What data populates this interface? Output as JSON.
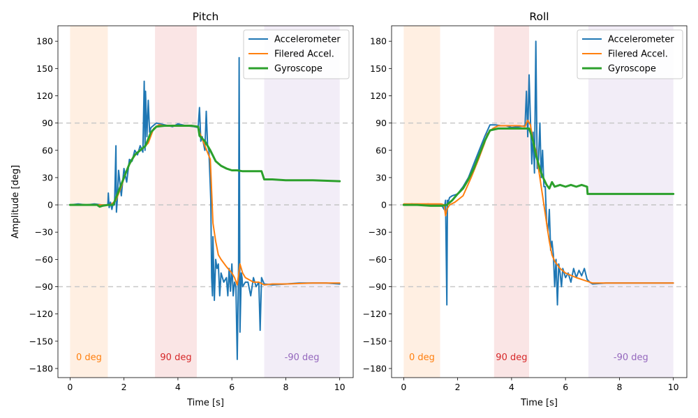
{
  "chart_data": [
    {
      "type": "line",
      "title": "Pitch",
      "xlabel": "Time [s]",
      "ylabel": "Amplitude [deg]",
      "xlim": [
        -0.45,
        10.5
      ],
      "ylim": [
        -190,
        197
      ],
      "xticks": [
        0,
        2,
        4,
        6,
        8,
        10
      ],
      "yticks": [
        180,
        150,
        120,
        90,
        60,
        30,
        0,
        -30,
        -60,
        -90,
        -120,
        -150,
        -180
      ],
      "ytick_labels": [
        "180",
        "150",
        "120",
        "90",
        "60",
        "30",
        "0",
        "−30",
        "−60",
        "−90",
        "−120",
        "−150",
        "−180"
      ],
      "grid": false,
      "legend_position": "top-right",
      "reference_lines": [
        90,
        0,
        -90
      ],
      "regions": [
        {
          "label": "0 deg",
          "x0": 0.0,
          "x1": 1.4,
          "color": "#ff7f0e"
        },
        {
          "label": "90 deg",
          "x0": 3.15,
          "x1": 4.7,
          "color": "#d62728"
        },
        {
          "label": "-90 deg",
          "x0": 7.2,
          "x1": 10.0,
          "color": "#9467bd"
        }
      ],
      "series": [
        {
          "name": "Accelerometer",
          "color": "#1f77b4",
          "width": 2,
          "x": [
            0,
            0.3,
            0.6,
            0.9,
            1.2,
            1.4,
            1.42,
            1.45,
            1.5,
            1.55,
            1.6,
            1.65,
            1.7,
            1.72,
            1.75,
            1.8,
            1.9,
            2.0,
            2.1,
            2.2,
            2.3,
            2.4,
            2.5,
            2.6,
            2.7,
            2.75,
            2.78,
            2.8,
            2.85,
            2.9,
            2.95,
            3.0,
            3.2,
            3.5,
            3.8,
            4.0,
            4.3,
            4.6,
            4.75,
            4.8,
            4.85,
            4.9,
            5.0,
            5.05,
            5.1,
            5.15,
            5.2,
            5.22,
            5.25,
            5.28,
            5.3,
            5.35,
            5.4,
            5.45,
            5.5,
            5.55,
            5.6,
            5.7,
            5.8,
            5.85,
            5.9,
            5.95,
            6.0,
            6.05,
            6.1,
            6.15,
            6.2,
            6.25,
            6.27,
            6.3,
            6.35,
            6.38,
            6.4,
            6.5,
            6.6,
            6.7,
            6.8,
            6.9,
            7.0,
            7.05,
            7.1,
            7.2,
            7.5,
            8.0,
            8.5,
            9.0,
            9.5,
            10.0
          ],
          "y": [
            0,
            1,
            0,
            1,
            0,
            0,
            13,
            -3,
            3,
            -5,
            2,
            0,
            65,
            -8,
            5,
            38,
            10,
            40,
            25,
            50,
            48,
            60,
            55,
            65,
            58,
            136,
            60,
            125,
            75,
            115,
            80,
            85,
            90,
            88,
            86,
            89,
            87,
            86,
            85,
            107,
            70,
            75,
            60,
            103,
            65,
            60,
            20,
            5,
            -80,
            -100,
            -35,
            -105,
            -60,
            -70,
            -65,
            -100,
            -75,
            -85,
            -80,
            -100,
            -70,
            -95,
            -65,
            -100,
            -85,
            -90,
            -170,
            -65,
            162,
            -140,
            -75,
            -80,
            -90,
            -85,
            -85,
            -100,
            -80,
            -90,
            -85,
            -138,
            -80,
            -87,
            -88,
            -87,
            -86,
            -86,
            -86,
            -87
          ]
        },
        {
          "name": "Filered Accel.",
          "color": "#ff7f0e",
          "width": 2,
          "x": [
            0,
            1.5,
            1.7,
            1.9,
            2.1,
            2.3,
            2.5,
            2.7,
            2.9,
            3.1,
            3.3,
            3.5,
            4.0,
            4.5,
            4.75,
            4.8,
            5.0,
            5.2,
            5.3,
            5.4,
            5.5,
            5.6,
            5.8,
            6.0,
            6.1,
            6.2,
            6.3,
            6.4,
            6.5,
            6.8,
            7.0,
            7.2,
            7.5,
            8.0,
            9.0,
            10.0
          ],
          "y": [
            0,
            0,
            5,
            20,
            38,
            50,
            58,
            62,
            68,
            84,
            88,
            87,
            87,
            87,
            86,
            80,
            65,
            50,
            -20,
            -40,
            -55,
            -60,
            -68,
            -75,
            -80,
            -88,
            -65,
            -75,
            -80,
            -85,
            -85,
            -88,
            -87,
            -87,
            -86,
            -86
          ]
        },
        {
          "name": "Gyroscope",
          "color": "#2ca02c",
          "width": 3,
          "x": [
            0,
            1.0,
            1.1,
            1.2,
            1.4,
            1.6,
            1.8,
            2.0,
            2.2,
            2.4,
            2.6,
            2.8,
            3.0,
            3.2,
            3.5,
            4.0,
            4.5,
            4.75,
            4.8,
            5.0,
            5.2,
            5.4,
            5.6,
            5.8,
            6.0,
            6.2,
            6.4,
            6.6,
            7.0,
            7.1,
            7.2,
            7.5,
            8.0,
            9.0,
            10.0
          ],
          "y": [
            0,
            0,
            -2,
            -1,
            0,
            0,
            15,
            30,
            45,
            55,
            60,
            65,
            80,
            86,
            87,
            87,
            87,
            86,
            76,
            70,
            60,
            48,
            43,
            40,
            38,
            38,
            37,
            37,
            37,
            37,
            28,
            28,
            27,
            27,
            26
          ]
        }
      ]
    },
    {
      "type": "line",
      "title": "Roll",
      "xlabel": "Time [s]",
      "ylabel": "",
      "xlim": [
        -0.45,
        10.5
      ],
      "ylim": [
        -190,
        197
      ],
      "xticks": [
        0,
        2,
        4,
        6,
        8,
        10
      ],
      "yticks": [
        180,
        150,
        120,
        90,
        60,
        30,
        0,
        -30,
        -60,
        -90,
        -120,
        -150,
        -180
      ],
      "ytick_labels": [
        "180",
        "150",
        "120",
        "90",
        "60",
        "30",
        "0",
        "−30",
        "−60",
        "−90",
        "−120",
        "−150",
        "−180"
      ],
      "grid": false,
      "legend_position": "top-right",
      "reference_lines": [
        90,
        0,
        -90
      ],
      "regions": [
        {
          "label": "0 deg",
          "x0": 0.0,
          "x1": 1.35,
          "color": "#ff7f0e"
        },
        {
          "label": "90 deg",
          "x0": 3.35,
          "x1": 4.65,
          "color": "#d62728"
        },
        {
          "label": "-90 deg",
          "x0": 6.85,
          "x1": 10.0,
          "color": "#9467bd"
        }
      ],
      "series": [
        {
          "name": "Accelerometer",
          "color": "#1f77b4",
          "width": 2,
          "x": [
            0,
            0.3,
            0.6,
            0.9,
            1.2,
            1.4,
            1.5,
            1.55,
            1.6,
            1.62,
            1.65,
            1.7,
            1.8,
            2.0,
            2.2,
            2.4,
            2.6,
            2.8,
            3.0,
            3.2,
            3.4,
            3.6,
            3.8,
            4.0,
            4.3,
            4.5,
            4.55,
            4.6,
            4.65,
            4.7,
            4.75,
            4.8,
            4.85,
            4.9,
            4.95,
            5.0,
            5.05,
            5.1,
            5.15,
            5.2,
            5.25,
            5.3,
            5.35,
            5.4,
            5.45,
            5.5,
            5.55,
            5.6,
            5.65,
            5.7,
            5.75,
            5.8,
            5.85,
            5.9,
            6.0,
            6.1,
            6.2,
            6.3,
            6.4,
            6.5,
            6.6,
            6.7,
            6.8,
            6.9,
            7.0,
            7.5,
            8.0,
            8.5,
            9.0,
            9.5,
            10.0
          ],
          "y": [
            0,
            1,
            0,
            1,
            0,
            0,
            -5,
            5,
            -110,
            5,
            3,
            8,
            10,
            12,
            20,
            30,
            45,
            60,
            75,
            88,
            88,
            87,
            87,
            85,
            86,
            87,
            125,
            75,
            143,
            95,
            45,
            80,
            35,
            180,
            40,
            50,
            90,
            30,
            60,
            20,
            20,
            -20,
            -30,
            -5,
            -50,
            -40,
            -55,
            -90,
            -60,
            -110,
            -65,
            -75,
            -90,
            -70,
            -80,
            -75,
            -85,
            -70,
            -80,
            -72,
            -78,
            -70,
            -82,
            -85,
            -87,
            -86,
            -86,
            -86,
            -86,
            -86,
            -86
          ]
        },
        {
          "name": "Filered Accel.",
          "color": "#ff7f0e",
          "width": 2,
          "x": [
            0,
            1.0,
            1.4,
            1.5,
            1.55,
            1.6,
            1.7,
            1.9,
            2.2,
            2.5,
            2.8,
            3.0,
            3.1,
            3.3,
            3.5,
            4.0,
            4.3,
            4.5,
            4.55,
            4.6,
            4.7,
            4.8,
            4.9,
            5.0,
            5.1,
            5.2,
            5.3,
            5.4,
            5.5,
            5.6,
            5.8,
            6.0,
            6.4,
            6.8,
            7.0,
            7.5,
            8.0,
            9.0,
            10.0
          ],
          "y": [
            1,
            1,
            1,
            0,
            -12,
            -5,
            0,
            3,
            10,
            30,
            52,
            68,
            78,
            84,
            87,
            87,
            87,
            86,
            90,
            93,
            88,
            70,
            60,
            40,
            20,
            0,
            -20,
            -40,
            -55,
            -62,
            -70,
            -75,
            -80,
            -84,
            -86,
            -86,
            -86,
            -86,
            -86
          ]
        },
        {
          "name": "Gyroscope",
          "color": "#2ca02c",
          "width": 3,
          "x": [
            0,
            0.5,
            1.0,
            1.4,
            1.6,
            1.8,
            2.0,
            2.2,
            2.4,
            2.6,
            2.8,
            3.0,
            3.2,
            3.5,
            4.0,
            4.5,
            4.65,
            4.7,
            4.8,
            4.9,
            5.0,
            5.1,
            5.2,
            5.3,
            5.4,
            5.5,
            5.6,
            5.8,
            6.0,
            6.2,
            6.4,
            6.6,
            6.8,
            6.82,
            6.9,
            7.5,
            8.0,
            9.0,
            10.0
          ],
          "y": [
            0,
            0,
            -1,
            -1,
            0,
            5,
            12,
            18,
            28,
            40,
            55,
            70,
            82,
            84,
            84,
            84,
            84,
            80,
            70,
            55,
            45,
            35,
            28,
            22,
            18,
            25,
            20,
            22,
            20,
            22,
            20,
            22,
            20,
            12,
            12,
            12,
            12,
            12,
            12
          ]
        }
      ]
    }
  ]
}
